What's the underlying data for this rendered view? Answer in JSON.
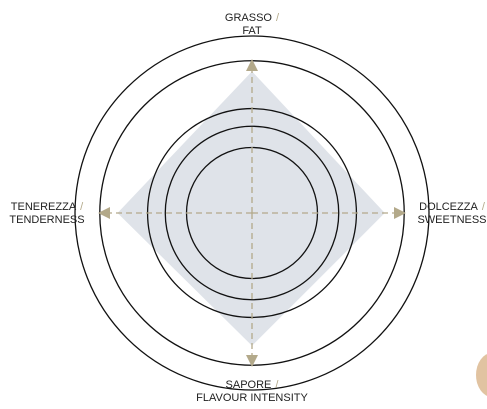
{
  "chart_data": {
    "type": "radar",
    "categories": [
      [
        "GRASSO",
        "FAT"
      ],
      [
        "DOLCEZZA",
        "SWEETNESS"
      ],
      [
        "SAPORE",
        "FLAVOUR INTENSITY"
      ],
      [
        "TENEREZZA",
        "TENDERNESS"
      ]
    ],
    "separator": "/",
    "values": [
      80,
      75,
      75,
      76
    ],
    "rlim": [
      0,
      100
    ],
    "rticks": [
      37,
      49,
      59,
      86,
      100
    ],
    "color": "#dfe3e9",
    "axis_color": "#b3a98a",
    "grid": true
  }
}
